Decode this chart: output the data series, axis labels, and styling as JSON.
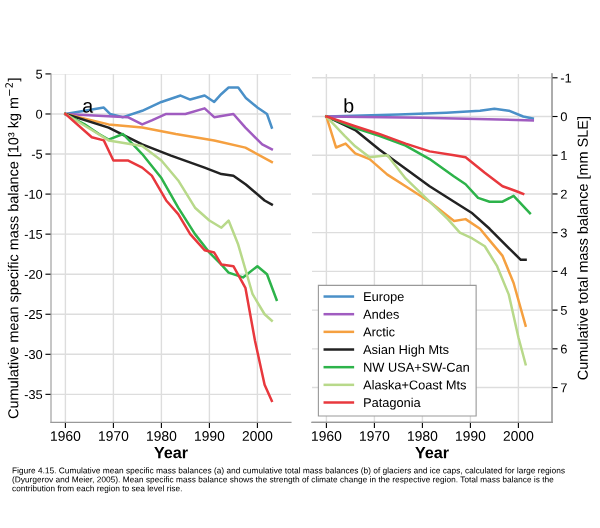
{
  "chart_data": [
    {
      "type": "line",
      "xlabel": "Year",
      "ylabel": "Cumulative mean specific mass balance [10³ kg m$^{−2}$]",
      "annotations": [
        "a",
        "Figure 4.15. Cumulative mean specific mass balances (a) and cumulative total mass balances (b) of glaciers and ice caps, calculated for large regions (Dyurgerov and Meier, 2005). Mean specific mass balance shows the strength of climate change in the respective region. Total mass balance is the contribution from each region to sea level rise."
      ],
      "xlim": [
        1957,
        2007
      ],
      "xticks": [
        1960,
        1970,
        1980,
        1990,
        2000
      ],
      "ylim": [
        -38.5,
        5
      ],
      "yticks": [
        5,
        0,
        -5,
        -10,
        -15,
        -20,
        -25,
        -30,
        -35
      ],
      "grid": true,
      "legend": false,
      "tick_labels": "xy",
      "series": [
        {
          "color": "#4a90c8",
          "x": [
            1960,
            1968,
            1969.3,
            1972,
            1976,
            1980,
            1984,
            1986,
            1989,
            1991,
            1992.5,
            1994,
            1996,
            1997.6,
            2000,
            2002,
            2003
          ],
          "values": [
            0,
            0.8,
            0,
            -0.4,
            0.4,
            1.5,
            2.3,
            1.8,
            2.3,
            1.5,
            2.5,
            3.3,
            3.3,
            2,
            0.8,
            0,
            -1.7
          ]
        },
        {
          "color": "#a05cc0",
          "x": [
            1960,
            1973,
            1976,
            1978,
            1981,
            1985,
            1989,
            1991,
            1995,
            1997.5,
            2001,
            2003
          ],
          "values": [
            0,
            -0.4,
            -1.3,
            -0.8,
            0,
            0,
            0.7,
            -0.4,
            0,
            -1.7,
            -3.8,
            -4.4
          ]
        },
        {
          "color": "#f5a040",
          "x": [
            1960,
            1969,
            1976,
            1983,
            1991,
            1997.5,
            2003
          ],
          "values": [
            0,
            -1.3,
            -1.7,
            -2.5,
            -3.3,
            -4.2,
            -6
          ]
        },
        {
          "color": "#222222",
          "x": [
            1960,
            1969,
            1976,
            1982,
            1989,
            1992.5,
            1995,
            1997.6,
            2001.5,
            2003
          ],
          "values": [
            0,
            -1.7,
            -3.8,
            -5.2,
            -6.7,
            -7.5,
            -7.7,
            -8.8,
            -10.8,
            -11.3
          ]
        },
        {
          "color": "#2db34a",
          "x": [
            1960,
            1964,
            1967,
            1969,
            1972,
            1976,
            1980,
            1983.5,
            1987,
            1990,
            1992.5,
            1994,
            1997,
            2000,
            2002,
            2004
          ],
          "values": [
            0,
            -1.3,
            -2.5,
            -3.2,
            -2.5,
            -5,
            -8,
            -11.7,
            -15,
            -17.3,
            -18.8,
            -19.8,
            -20.4,
            -19,
            -20,
            -23.2
          ]
        },
        {
          "color": "#b8d98a",
          "x": [
            1960,
            1965.5,
            1969,
            1976,
            1980,
            1983.5,
            1987,
            1990,
            1992.5,
            1994,
            1996,
            1999,
            2001.5,
            2003
          ],
          "values": [
            0,
            -2,
            -3.3,
            -4,
            -5.8,
            -8.3,
            -11.7,
            -13.3,
            -14.2,
            -13.3,
            -16.3,
            -22.5,
            -25,
            -25.8
          ]
        },
        {
          "color": "#e8383d",
          "x": [
            1960,
            1965.5,
            1968,
            1970,
            1973,
            1976,
            1978,
            1981,
            1983.5,
            1986,
            1989,
            1991,
            1992.5,
            1995,
            1997.5,
            1999.5,
            2001.5,
            2003
          ],
          "values": [
            0,
            -2.9,
            -3.3,
            -5.8,
            -5.8,
            -6.7,
            -7.7,
            -10.8,
            -12.5,
            -15,
            -17,
            -17.3,
            -18.8,
            -19,
            -21.7,
            -28.3,
            -33.8,
            -35.8
          ]
        }
      ]
    },
    {
      "type": "line",
      "xlabel": "Year",
      "y2label": "Cumulative total mass balance [mm SLE]",
      "annotations": [
        "b"
      ],
      "xlim": [
        1957,
        2007
      ],
      "xticks": [
        1960,
        1970,
        1980,
        1990,
        2000
      ],
      "y2lim": [
        7.9,
        -1.1
      ],
      "y2ticks": [
        -1,
        0,
        1,
        2,
        3,
        4,
        5,
        6,
        7
      ],
      "grid": true,
      "legend": "bottom left",
      "series": [
        {
          "name": "Europe",
          "axis": "y2",
          "color": "#4a90c8",
          "x": [
            1960,
            1975,
            1985,
            1992,
            1995,
            1998,
            2001,
            2003
          ],
          "values": [
            0,
            -0.05,
            -0.1,
            -0.15,
            -0.2,
            -0.15,
            0,
            0.05
          ]
        },
        {
          "name": "Andes",
          "axis": "y2",
          "color": "#a05cc0",
          "x": [
            1960,
            1980,
            2003
          ],
          "values": [
            0,
            0.03,
            0.1
          ]
        },
        {
          "name": "Arctic",
          "axis": "y2",
          "color": "#f5a040",
          "x": [
            1960,
            1962,
            1964,
            1966,
            1969,
            1972.7,
            1976.5,
            1981.5,
            1986.6,
            1989,
            1992,
            1994,
            1996.7,
            1999,
            2001.5
          ],
          "values": [
            0,
            0.8,
            0.7,
            0.95,
            1.1,
            1.5,
            1.8,
            2.2,
            2.7,
            2.65,
            2.9,
            3.2,
            3.6,
            4.3,
            5.4
          ]
        },
        {
          "name": "Asian High Mts",
          "axis": "y2",
          "color": "#222222",
          "x": [
            1960,
            1966,
            1971,
            1976.5,
            1981.5,
            1986.6,
            1990.4,
            1994,
            1998,
            2000.5,
            2001.5
          ],
          "values": [
            0,
            0.35,
            0.85,
            1.35,
            1.8,
            2.2,
            2.5,
            2.9,
            3.4,
            3.7,
            3.7
          ]
        },
        {
          "name": "NW USA+SW-Can",
          "axis": "y2",
          "color": "#2db34a",
          "x": [
            1960,
            1966,
            1971,
            1976.5,
            1981.5,
            1986.6,
            1989,
            1991.6,
            1994,
            1996.7,
            1999,
            2002.4
          ],
          "values": [
            0,
            0.3,
            0.5,
            0.75,
            1.1,
            1.55,
            1.75,
            2.1,
            2.2,
            2.2,
            2.05,
            2.5
          ]
        },
        {
          "name": "Alaska+Coast Mts",
          "axis": "y2",
          "color": "#b8d98a",
          "x": [
            1960,
            1963.8,
            1966,
            1969,
            1972.7,
            1976.5,
            1981.5,
            1985.3,
            1987.8,
            1990.4,
            1993,
            1995.5,
            1998,
            2000,
            2001.5
          ],
          "values": [
            0,
            0.5,
            0.77,
            1.05,
            1.0,
            1.6,
            2.2,
            2.65,
            3.0,
            3.15,
            3.35,
            3.85,
            4.6,
            5.7,
            6.4
          ]
        },
        {
          "name": "Patagonia",
          "axis": "y2",
          "color": "#e8383d",
          "x": [
            1960,
            1966,
            1971,
            1976.5,
            1981.5,
            1986.6,
            1989,
            1993,
            1996.7,
            2000,
            2001
          ],
          "values": [
            0,
            0.25,
            0.45,
            0.7,
            0.9,
            1.0,
            1.05,
            1.45,
            1.8,
            1.95,
            2.0
          ]
        }
      ]
    }
  ]
}
